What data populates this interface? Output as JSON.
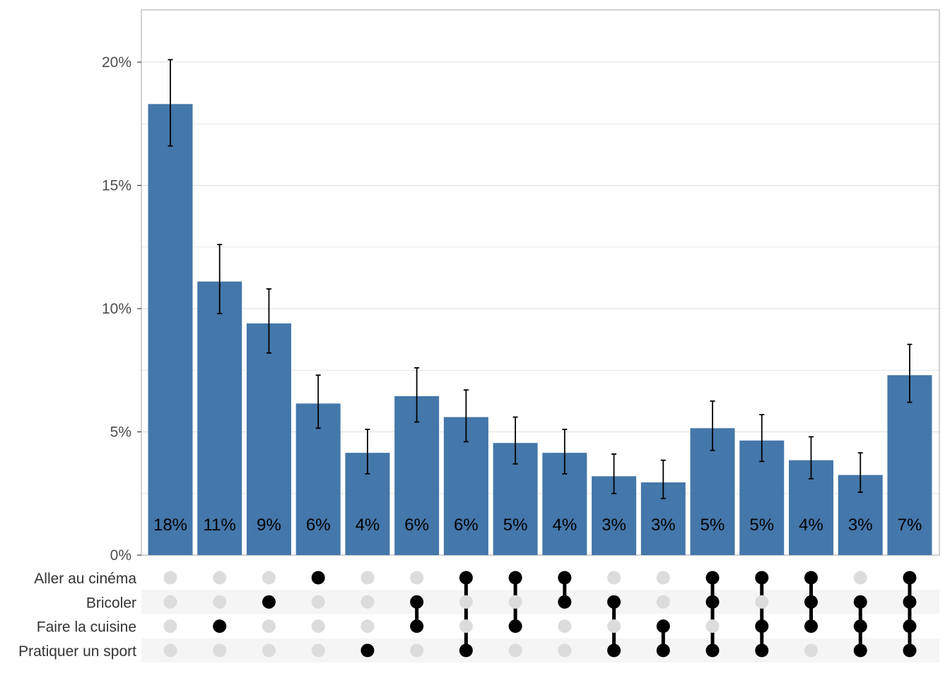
{
  "chart_data": {
    "type": "bar",
    "subtype": "upset",
    "colors": {
      "bar": "#4477AA",
      "grid": "#dedede",
      "dot_active": "#000000",
      "dot_inactive": "#dcdcdc",
      "stripe": "#f5f5f5",
      "error_bar": "#000000"
    },
    "ylim": [
      0,
      22
    ],
    "y_ticks": [
      {
        "value": 0,
        "label": "0%"
      },
      {
        "value": 5,
        "label": "5%"
      },
      {
        "value": 10,
        "label": "10%"
      },
      {
        "value": 15,
        "label": "15%"
      },
      {
        "value": 20,
        "label": "20%"
      }
    ],
    "minor_grid": [
      2.5,
      7.5,
      12.5,
      17.5
    ],
    "grid": true,
    "sets": [
      "Aller au cinéma",
      "Bricoler",
      "Faire la cuisine",
      "Pratiquer un sport"
    ],
    "bars": [
      {
        "value": 18.3,
        "ci": [
          16.6,
          20.1
        ],
        "label": "18%",
        "members": []
      },
      {
        "value": 11.1,
        "ci": [
          9.8,
          12.6
        ],
        "label": "11%",
        "members": [
          "Faire la cuisine"
        ]
      },
      {
        "value": 9.4,
        "ci": [
          8.2,
          10.8
        ],
        "label": "9%",
        "members": [
          "Bricoler"
        ]
      },
      {
        "value": 6.15,
        "ci": [
          5.15,
          7.3
        ],
        "label": "6%",
        "members": [
          "Aller au cinéma"
        ]
      },
      {
        "value": 4.15,
        "ci": [
          3.3,
          5.1
        ],
        "label": "4%",
        "members": [
          "Pratiquer un sport"
        ]
      },
      {
        "value": 6.45,
        "ci": [
          5.4,
          7.6
        ],
        "label": "6%",
        "members": [
          "Bricoler",
          "Faire la cuisine"
        ]
      },
      {
        "value": 5.6,
        "ci": [
          4.6,
          6.7
        ],
        "label": "6%",
        "members": [
          "Aller au cinéma",
          "Pratiquer un sport"
        ]
      },
      {
        "value": 4.55,
        "ci": [
          3.7,
          5.6
        ],
        "label": "5%",
        "members": [
          "Aller au cinéma",
          "Faire la cuisine"
        ]
      },
      {
        "value": 4.15,
        "ci": [
          3.3,
          5.1
        ],
        "label": "4%",
        "members": [
          "Aller au cinéma",
          "Bricoler"
        ]
      },
      {
        "value": 3.2,
        "ci": [
          2.5,
          4.1
        ],
        "label": "3%",
        "members": [
          "Bricoler",
          "Pratiquer un sport"
        ]
      },
      {
        "value": 2.95,
        "ci": [
          2.3,
          3.85
        ],
        "label": "3%",
        "members": [
          "Faire la cuisine",
          "Pratiquer un sport"
        ]
      },
      {
        "value": 5.15,
        "ci": [
          4.25,
          6.25
        ],
        "label": "5%",
        "members": [
          "Aller au cinéma",
          "Bricoler",
          "Pratiquer un sport"
        ]
      },
      {
        "value": 4.65,
        "ci": [
          3.8,
          5.7
        ],
        "label": "5%",
        "members": [
          "Aller au cinéma",
          "Faire la cuisine",
          "Pratiquer un sport"
        ]
      },
      {
        "value": 3.85,
        "ci": [
          3.1,
          4.8
        ],
        "label": "4%",
        "members": [
          "Aller au cinéma",
          "Bricoler",
          "Faire la cuisine"
        ]
      },
      {
        "value": 3.25,
        "ci": [
          2.55,
          4.15
        ],
        "label": "3%",
        "members": [
          "Bricoler",
          "Faire la cuisine",
          "Pratiquer un sport"
        ]
      },
      {
        "value": 7.3,
        "ci": [
          6.2,
          8.55
        ],
        "label": "7%",
        "members": [
          "Aller au cinéma",
          "Bricoler",
          "Faire la cuisine",
          "Pratiquer un sport"
        ]
      }
    ]
  }
}
